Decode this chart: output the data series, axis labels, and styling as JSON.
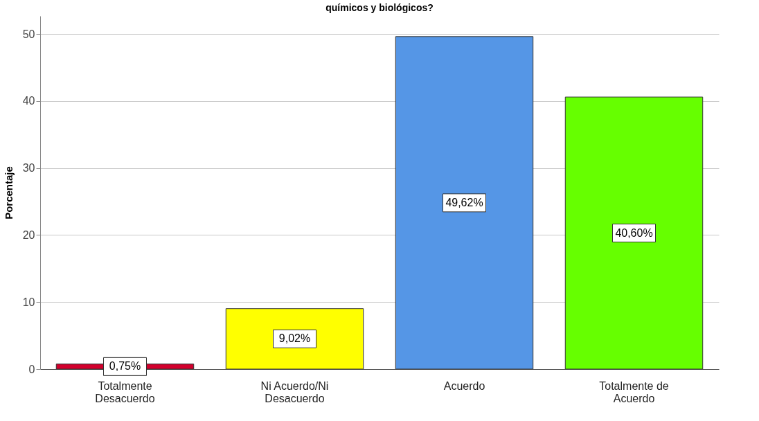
{
  "chart_data": {
    "type": "bar",
    "title": "químicos y biológicos?",
    "ylabel": "Porcentaje",
    "categories": [
      "Totalmente Desacuerdo",
      "Ni Acuerdo/Ni Desacuerdo",
      "Acuerdo",
      "Totalmente de Acuerdo"
    ],
    "values": [
      0.75,
      9.02,
      49.62,
      40.6
    ],
    "colors": [
      "#d2002d",
      "#ffff00",
      "#5596e6",
      "#66ff00"
    ],
    "value_labels": [
      "0,75%",
      "9,02%",
      "49,62%",
      "40,60%"
    ],
    "ylim": [
      0,
      52.7
    ],
    "yticks": [
      0,
      10,
      20,
      30,
      40,
      50
    ],
    "grid": "y"
  }
}
